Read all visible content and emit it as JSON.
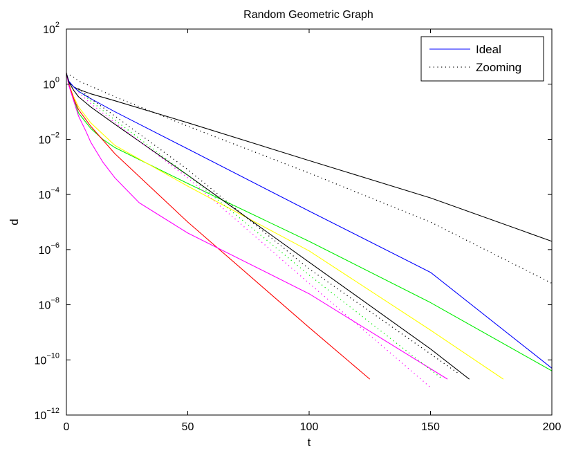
{
  "chart_data": {
    "type": "line",
    "title": "Random Geometric Graph",
    "xlabel": "t",
    "ylabel": "d",
    "xlim": [
      0,
      200
    ],
    "ylim": [
      1e-12,
      100
    ],
    "yscale": "log",
    "xticks": [
      0,
      50,
      100,
      150,
      200
    ],
    "yticks": [
      -12,
      -10,
      -8,
      -6,
      -4,
      -2,
      0,
      2
    ],
    "ytick_base": "10",
    "grid": false,
    "legend": {
      "placement": "top-right",
      "entries": [
        {
          "label": "Ideal",
          "color": "#0000ff",
          "style": "solid"
        },
        {
          "label": "Zooming",
          "color": "#000000",
          "style": "dotted"
        }
      ]
    },
    "series": [
      {
        "color": "#000000",
        "style": "solid",
        "x": [
          0,
          1,
          3,
          5,
          10,
          20,
          50,
          100,
          150,
          200
        ],
        "y": [
          2.5,
          1.2,
          0.8,
          0.65,
          0.45,
          0.25,
          0.04,
          0.0017,
          7.5e-05,
          2e-06
        ]
      },
      {
        "color": "#000000",
        "style": "dotted",
        "x": [
          0,
          3,
          5,
          10,
          20,
          50,
          100,
          150,
          200
        ],
        "y": [
          2.5,
          1.8,
          1.3,
          0.85,
          0.35,
          0.03,
          0.0006,
          1e-05,
          6e-08
        ]
      },
      {
        "color": "#0000ff",
        "style": "solid",
        "x": [
          0,
          1,
          3,
          5,
          10,
          20,
          50,
          100,
          150,
          200
        ],
        "y": [
          2.5,
          1.3,
          0.8,
          0.55,
          0.3,
          0.1,
          0.0045,
          2.5e-05,
          1.5e-07,
          5e-11
        ]
      },
      {
        "color": "#00ee00",
        "style": "solid",
        "x": [
          0,
          1,
          3,
          5,
          10,
          15,
          20,
          50,
          100,
          150,
          200
        ],
        "y": [
          2.5,
          0.9,
          0.3,
          0.09,
          0.025,
          0.01,
          0.005,
          0.00025,
          2e-06,
          1.2e-08,
          4e-11
        ]
      },
      {
        "color": "#ffff00",
        "style": "solid",
        "x": [
          0,
          1,
          3,
          5,
          10,
          20,
          50,
          100,
          150,
          180
        ],
        "y": [
          2.5,
          1.0,
          0.35,
          0.15,
          0.04,
          0.006,
          0.0002,
          9e-07,
          1.2e-09,
          2e-11
        ]
      },
      {
        "color": "#ff0000",
        "style": "solid",
        "x": [
          0,
          1,
          3,
          5,
          10,
          20,
          50,
          100,
          125
        ],
        "y": [
          2.5,
          1.0,
          0.3,
          0.12,
          0.03,
          0.003,
          1e-05,
          1.5e-09,
          2e-11
        ]
      },
      {
        "color": "#ff00ff",
        "style": "solid",
        "x": [
          0,
          1,
          3,
          5,
          8,
          10,
          15,
          20,
          30,
          50,
          100,
          157
        ],
        "y": [
          2.5,
          0.9,
          0.25,
          0.07,
          0.02,
          0.008,
          0.0015,
          0.0004,
          5e-05,
          4e-06,
          2.5e-08,
          2e-11
        ]
      },
      {
        "color": "#000000",
        "style": "solid",
        "x": [
          0,
          1,
          3,
          5,
          10,
          20,
          50,
          100,
          150,
          166
        ],
        "y": [
          2.5,
          1.2,
          0.6,
          0.35,
          0.15,
          0.035,
          0.0005,
          3.5e-07,
          2.5e-10,
          2e-11
        ]
      },
      {
        "color": "#ff00ff",
        "style": "dotted",
        "x": [
          5,
          10,
          20,
          50,
          100,
          150
        ],
        "y": [
          0.5,
          0.2,
          0.04,
          0.0004,
          6e-08,
          1e-11
        ]
      },
      {
        "color": "#00ee00",
        "style": "dotted",
        "x": [
          5,
          10,
          20,
          50,
          100,
          155
        ],
        "y": [
          0.6,
          0.25,
          0.05,
          0.0005,
          1.2e-07,
          2e-11
        ]
      },
      {
        "color": "#000000",
        "style": "dotted",
        "x": [
          5,
          10,
          20,
          50,
          100,
          162
        ],
        "y": [
          0.7,
          0.3,
          0.07,
          0.0008,
          2e-07,
          3e-11
        ]
      }
    ]
  }
}
